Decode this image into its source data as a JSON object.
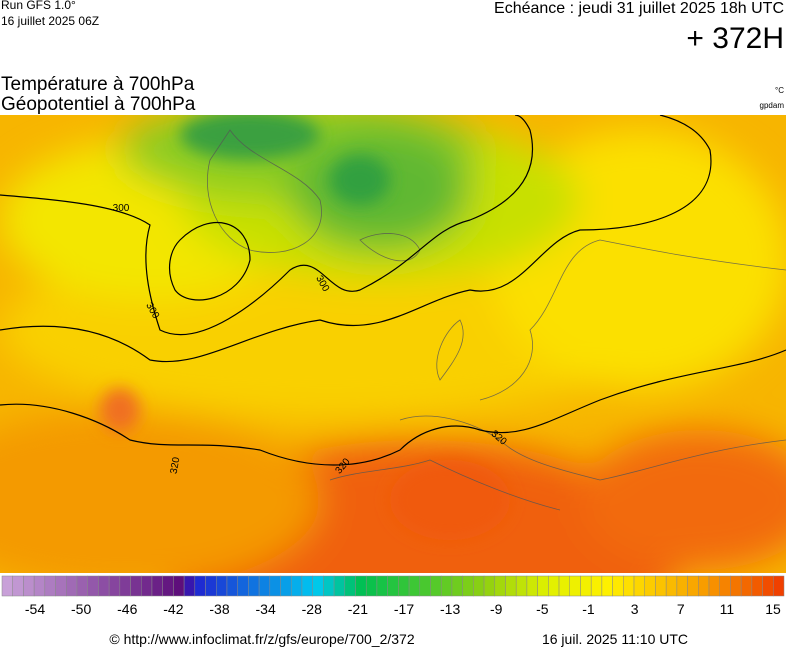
{
  "header": {
    "run": "Run GFS 1.0°",
    "run_date": "16 juillet 2025 06Z",
    "valid": "Echéance : jeudi 31 juillet 2025 18h UTC",
    "lead": "+ 372H"
  },
  "title": {
    "line1": "Température à 700hPa",
    "line2": "Géopotentiel à 700hPa",
    "unit1": "°C",
    "unit2": "gpdam"
  },
  "contour_labels": [
    "300",
    "300",
    "300",
    "320",
    "320",
    "320"
  ],
  "colorbar": {
    "ticks": [
      -54,
      -50,
      -46,
      -42,
      -38,
      -34,
      -28,
      -21,
      -17,
      -13,
      -9,
      -5,
      -1,
      3,
      7,
      11,
      15
    ]
  },
  "footer": {
    "source": "© http://www.infoclimat.fr/z/gfs/europe/700_2/372",
    "timestamp": "16 juil. 2025 11:10 UTC"
  }
}
